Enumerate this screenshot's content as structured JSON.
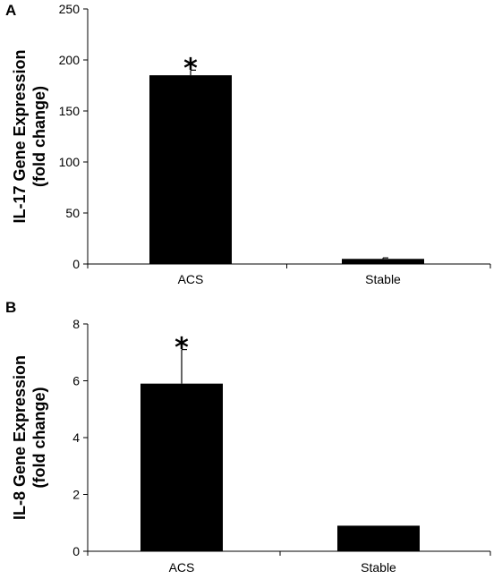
{
  "chart_data": [
    {
      "type": "bar",
      "panel": "A",
      "categories": [
        "ACS",
        "Stable"
      ],
      "values": [
        185,
        5
      ],
      "errors": [
        5,
        1
      ],
      "significance": [
        "*",
        ""
      ],
      "ylabel_line1": "IL-17 Gene Expression",
      "ylabel_line2": "(fold change)",
      "xlabel": "",
      "ylim": [
        0,
        250
      ],
      "yticks": [
        0,
        50,
        100,
        150,
        200,
        250
      ],
      "bar_color": "#000000",
      "grid": false
    },
    {
      "type": "bar",
      "panel": "B",
      "categories": [
        "ACS",
        "Stable"
      ],
      "values": [
        5.9,
        0.9
      ],
      "errors": [
        1.2,
        0
      ],
      "significance": [
        "*",
        ""
      ],
      "ylabel_line1": "IL-8 Gene Expression",
      "ylabel_line2": "(fold change)",
      "xlabel": "",
      "ylim": [
        0,
        8
      ],
      "yticks": [
        0,
        2,
        4,
        6,
        8
      ],
      "bar_color": "#000000",
      "grid": false
    }
  ]
}
